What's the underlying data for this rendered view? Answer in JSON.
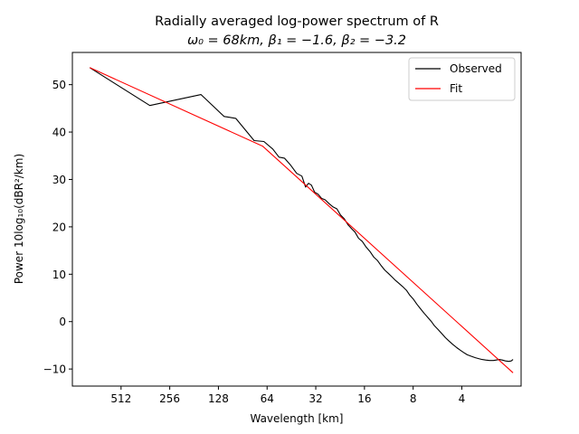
{
  "chart_data": {
    "type": "line",
    "title": "Radially averaged log-power spectrum of R",
    "subtitle": "ω₀ = 68km, β₁ = −1.6, β₂ = −3.2",
    "xlabel": "Wavelength [km]",
    "ylabel": "Power 10log₁₀(dBR²/km)",
    "x_scale": "log-reciprocal",
    "x_ticks": [
      "512",
      "256",
      "128",
      "64",
      "32",
      "16",
      "8",
      "4"
    ],
    "x_tick_values": [
      512,
      256,
      128,
      64,
      32,
      16,
      8,
      4
    ],
    "xlim": [
      1024,
      1.72
    ],
    "y_ticks": [
      "50",
      "40",
      "30",
      "20",
      "10",
      "0",
      "−10"
    ],
    "y_tick_values": [
      50,
      40,
      30,
      20,
      10,
      0,
      -10
    ],
    "ylim": [
      -13.6,
      56.8
    ],
    "grid": false,
    "legend_position": "top-right",
    "series": [
      {
        "name": "Observed",
        "color": "#000000",
        "x": [
          800,
          340,
          164,
          118,
          100,
          77,
          67,
          59,
          54,
          50,
          46,
          42,
          39,
          37,
          35.5,
          34,
          32.5,
          31,
          29.5,
          28,
          26.5,
          25,
          23.7,
          22.5,
          21.3,
          20.2,
          19.2,
          18.3,
          17.4,
          16.5,
          15.6,
          14.8,
          14,
          13.3,
          12.6,
          12,
          11.4,
          10.8,
          10.3,
          9.8,
          9.3,
          8.8,
          8.4,
          8,
          7.6,
          7.2,
          6.85,
          6.5,
          6.2,
          5.9,
          5.6,
          5.3,
          5.05,
          4.8,
          4.55,
          4.3,
          4.1,
          3.9,
          3.7,
          3.5,
          3.3,
          3.15,
          3.0,
          2.85,
          2.7,
          2.55,
          2.45,
          2.35,
          2.25,
          2.15,
          2.05,
          1.98,
          1.93
        ],
        "values": [
          53.6,
          45.6,
          47.9,
          43.3,
          42.9,
          38.2,
          38.0,
          36.4,
          34.7,
          34.5,
          33.1,
          31.3,
          30.7,
          28.4,
          29.2,
          28.8,
          27.3,
          26.9,
          26.0,
          25.7,
          24.9,
          24.2,
          23.8,
          22.5,
          21.7,
          20.4,
          19.6,
          18.9,
          17.6,
          16.9,
          15.7,
          14.8,
          13.6,
          12.9,
          11.8,
          10.9,
          10.2,
          9.4,
          8.7,
          8.1,
          7.4,
          6.6,
          5.6,
          4.8,
          3.7,
          2.7,
          1.8,
          0.9,
          0.1,
          -0.9,
          -1.7,
          -2.6,
          -3.4,
          -4.1,
          -4.8,
          -5.5,
          -6.0,
          -6.5,
          -7.0,
          -7.3,
          -7.6,
          -7.8,
          -8.0,
          -8.1,
          -8.2,
          -8.2,
          -8.1,
          -8.0,
          -8.1,
          -8.3,
          -8.4,
          -8.3,
          -8.0
        ]
      },
      {
        "name": "Fit",
        "color": "#ff0000",
        "x": [
          800,
          68,
          1.93
        ],
        "values": [
          53.6,
          37.0,
          -10.8
        ]
      }
    ]
  }
}
